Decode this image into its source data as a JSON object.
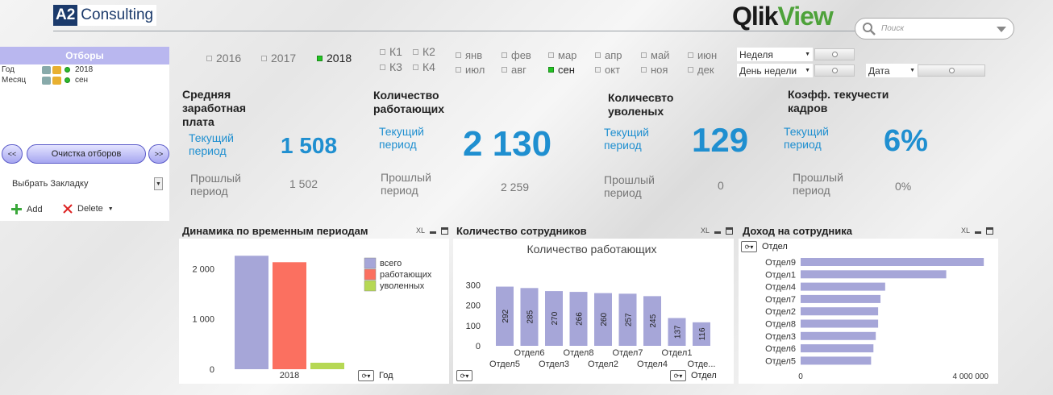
{
  "header": {
    "logo_a2_box": "A2",
    "logo_a2_rest": "Consulting",
    "logo_qv_q": "Qlik",
    "logo_qv_v": "View",
    "search_placeholder": "Поиск"
  },
  "selections": {
    "title": "Отборы",
    "rows": [
      {
        "label": "Год",
        "value": "2018"
      },
      {
        "label": "Месяц",
        "value": "сен"
      }
    ],
    "prev": "<<",
    "clear": "Очистка отборов",
    "next": ">>",
    "bookmark": "Выбрать Закладку",
    "add": "Add",
    "delete": "Delete"
  },
  "filters": {
    "years": [
      "2016",
      "2017",
      "2018"
    ],
    "active_year": "2018",
    "quarters": [
      "К1",
      "К2",
      "К3",
      "К4"
    ],
    "months": [
      "янв",
      "фев",
      "мар",
      "апр",
      "май",
      "июн",
      "июл",
      "авг",
      "сен",
      "окт",
      "ноя",
      "дек"
    ],
    "active_month": "сен",
    "week": "Неделя",
    "weekday": "День недели",
    "date": "Дата"
  },
  "kpis": [
    {
      "title": "Средняя заработная плата",
      "current_label": "Текущий период",
      "current": "1 508",
      "prev_label": "Прошлый период",
      "prev": "1 502"
    },
    {
      "title": "Количество работающих",
      "current_label": "Текущий период",
      "current": "2 130",
      "prev_label": "Прошлый период",
      "prev": "2 259"
    },
    {
      "title": "Количесвто уволеных",
      "current_label": "Текущий период",
      "current": "129",
      "prev_label": "Прошлый период",
      "prev": "0"
    },
    {
      "title": "Коэфф. текучести кадров",
      "current_label": "Текущий период",
      "current": "6%",
      "prev_label": "Прошлый период",
      "prev": "0%"
    }
  ],
  "panels": {
    "dynamics": {
      "title": "Динамика по временным периодам",
      "cycle_label": "Год"
    },
    "headcount": {
      "title": "Количество сотрудников",
      "cycle_label": "Отдел"
    },
    "income": {
      "title": "Доход на сотрудника",
      "cycle_label": "Отдел"
    },
    "xl": "XL"
  },
  "chart_data": [
    {
      "type": "bar",
      "categories": [
        "2018"
      ],
      "series": [
        {
          "name": "всего",
          "values": [
            2259
          ],
          "color": "#a6a6d8"
        },
        {
          "name": "работающих",
          "values": [
            2130
          ],
          "color": "#fb7060"
        },
        {
          "name": "уволенных",
          "values": [
            129
          ],
          "color": "#b6d854"
        }
      ],
      "yticks": [
        "0",
        "1 000",
        "2 000"
      ],
      "ylim": [
        0,
        2600
      ],
      "legend": "top-right"
    },
    {
      "type": "bar",
      "title": "Количество работающих",
      "categories": [
        "Отдел5",
        "Отдел6",
        "Отдел3",
        "Отдел8",
        "Отдел2",
        "Отдел7",
        "Отдел4",
        "Отдел1",
        "Отде..."
      ],
      "values": [
        292,
        285,
        270,
        266,
        260,
        257,
        245,
        137,
        116
      ],
      "yticks": [
        "0",
        "100",
        "200",
        "300"
      ],
      "ylim": [
        0,
        330
      ],
      "color": "#a6a6d8"
    },
    {
      "type": "bar",
      "orientation": "horizontal",
      "header": "Отдел",
      "categories": [
        "Отдел9",
        "Отдел1",
        "Отдел4",
        "Отдел7",
        "Отдел2",
        "Отдел8",
        "Отдел3",
        "Отдел6",
        "Отдел5"
      ],
      "values": [
        3900000,
        3100000,
        1800000,
        1700000,
        1650000,
        1650000,
        1600000,
        1550000,
        1500000
      ],
      "xticks": [
        "0",
        "4 000 000"
      ],
      "xlim": [
        0,
        4000000
      ],
      "color": "#a6a6d8"
    }
  ]
}
